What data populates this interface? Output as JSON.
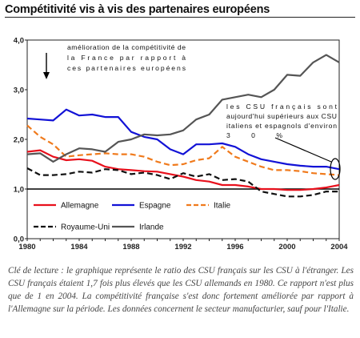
{
  "title": "Compétitivité vis à vis des partenaires européens",
  "chart_data": {
    "type": "line",
    "x": [
      1980,
      1981,
      1982,
      1983,
      1984,
      1985,
      1986,
      1987,
      1988,
      1989,
      1990,
      1991,
      1992,
      1993,
      1994,
      1995,
      1996,
      1997,
      1998,
      1999,
      2000,
      2001,
      2002,
      2003,
      2004
    ],
    "x_ticks": [
      "1980",
      "1984",
      "1988",
      "1992",
      "1996",
      "2000",
      "2004"
    ],
    "y_ticks": [
      "0,0",
      "1,0",
      "2,0",
      "3,0",
      "4,0"
    ],
    "ylim": [
      0,
      4
    ],
    "xlim": [
      1980,
      2004
    ],
    "reference_line": 1.0,
    "series": [
      {
        "name": "Allemagne",
        "color": "#e8101c",
        "dash": "solid",
        "values": [
          1.75,
          1.78,
          1.65,
          1.58,
          1.6,
          1.57,
          1.45,
          1.4,
          1.38,
          1.36,
          1.35,
          1.3,
          1.25,
          1.18,
          1.15,
          1.08,
          1.08,
          1.05,
          1.0,
          1.0,
          0.98,
          0.98,
          1.0,
          1.03,
          1.08
        ]
      },
      {
        "name": "Espagne",
        "color": "#1212d6",
        "dash": "solid",
        "values": [
          2.42,
          2.4,
          2.38,
          2.6,
          2.48,
          2.5,
          2.45,
          2.45,
          2.15,
          2.05,
          2.0,
          1.8,
          1.7,
          1.9,
          1.9,
          1.92,
          1.85,
          1.7,
          1.6,
          1.55,
          1.5,
          1.47,
          1.45,
          1.45,
          1.4
        ]
      },
      {
        "name": "Italie",
        "color": "#f07a1c",
        "dash": "dash",
        "values": [
          2.28,
          2.05,
          1.9,
          1.65,
          1.68,
          1.7,
          1.72,
          1.7,
          1.7,
          1.65,
          1.55,
          1.48,
          1.5,
          1.58,
          1.62,
          1.85,
          1.65,
          1.55,
          1.45,
          1.38,
          1.38,
          1.36,
          1.32,
          1.3,
          1.28
        ]
      },
      {
        "name": "Royaume-Uni",
        "color": "#111111",
        "dash": "dash",
        "values": [
          1.42,
          1.28,
          1.28,
          1.3,
          1.35,
          1.33,
          1.4,
          1.38,
          1.3,
          1.33,
          1.28,
          1.2,
          1.32,
          1.25,
          1.3,
          1.18,
          1.2,
          1.15,
          0.95,
          0.9,
          0.85,
          0.85,
          0.88,
          0.95,
          0.95
        ]
      },
      {
        "name": "Irlande",
        "color": "#555555",
        "dash": "solid",
        "values": [
          1.7,
          1.72,
          1.55,
          1.7,
          1.82,
          1.8,
          1.75,
          1.95,
          2.0,
          2.1,
          2.08,
          2.1,
          2.18,
          2.4,
          2.5,
          2.8,
          2.85,
          2.9,
          2.85,
          3.0,
          3.3,
          3.28,
          3.55,
          3.7,
          3.55
        ]
      }
    ],
    "annotations": [
      "amélioration de la compétitivité de la France par rapport à ces partenaires européens",
      "les CSU français sont aujourd'hui supérieurs aux CSU italiens et espagnols d'environ 30%"
    ]
  },
  "caption": "Clé de lecture : le graphique représente le ratio des CSU français sur les CSU à l'étranger. Les CSU français étaient 1,7 fois plus élevés que les CSU allemands en 1980. Ce rapport n'est plus que de 1 en 2004. La compétitivité française s'est donc fortement améliorée par rapport à l'Allemagne sur la période. Les données concernent le secteur manufacturier, sauf pour l'Italie."
}
